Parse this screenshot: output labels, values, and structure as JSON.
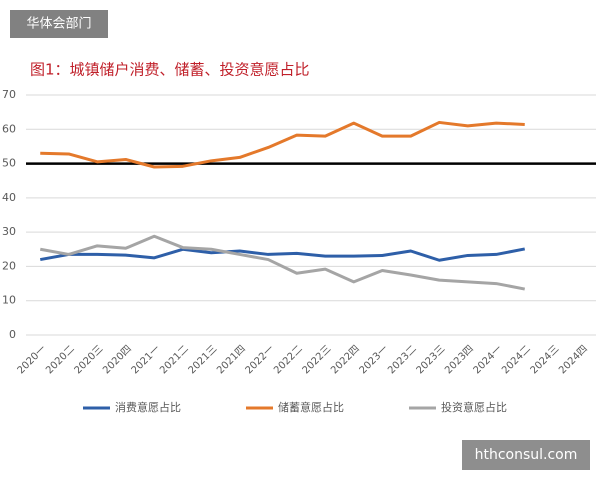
{
  "badge": "华体会部门",
  "watermark": "hthconsul.com",
  "chart_data": {
    "type": "line",
    "title": "图1：城镇储户消费、储蓄、投资意愿占比",
    "categories": [
      "2020一",
      "2020二",
      "2020三",
      "2020四",
      "2021一",
      "2021二",
      "2021三",
      "2021四",
      "2022一",
      "2022二",
      "2022三",
      "2022四",
      "2023一",
      "2023二",
      "2023三",
      "2023四",
      "2024一",
      "2024二",
      "2024三",
      "2024四"
    ],
    "series": [
      {
        "name": "消费意愿占比",
        "color": "#2e5fa8",
        "values": [
          22,
          23.5,
          23.5,
          23.3,
          22.5,
          25,
          24,
          24.5,
          23.5,
          23.8,
          23,
          23,
          23.2,
          24.5,
          21.8,
          23.2,
          23.5,
          25.1,
          null,
          null
        ]
      },
      {
        "name": "储蓄意愿占比",
        "color": "#e4792b",
        "values": [
          53,
          52.8,
          50.5,
          51.2,
          49,
          49.2,
          50.8,
          51.8,
          54.7,
          58.3,
          58,
          61.8,
          58,
          58,
          62,
          61,
          61.8,
          61.4,
          null,
          null
        ]
      },
      {
        "name": "投资意愿占比",
        "color": "#a5a5a5",
        "values": [
          25,
          23.5,
          26,
          25.3,
          28.8,
          25.5,
          25,
          23.5,
          22,
          18,
          19.2,
          15.5,
          18.8,
          17.5,
          16,
          15.5,
          15,
          13.4,
          null,
          null
        ]
      }
    ],
    "ylim": [
      0,
      70
    ],
    "yticks": [
      0,
      10,
      20,
      30,
      40,
      50,
      60,
      70
    ],
    "grid": true,
    "reference_line": 50
  }
}
